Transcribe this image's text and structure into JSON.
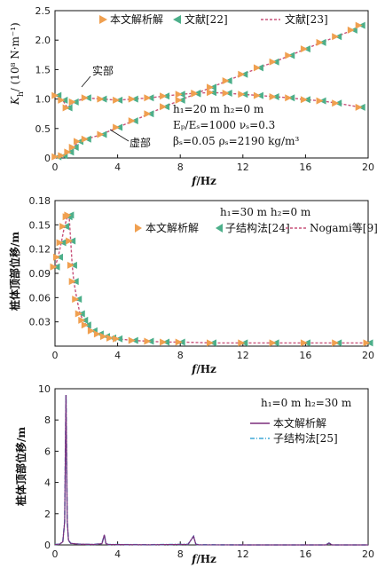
{
  "chart_data": [
    {
      "type": "line",
      "ylabel_symbol": "K",
      "ylabel_sub": "h",
      "ylabel_unit": "/ (10⁸ N·m⁻¹)",
      "xlabel_f": "f",
      "xlabel_unit": "/Hz",
      "xlim": [
        0,
        20
      ],
      "ylim": [
        0,
        2.5
      ],
      "xticks": [
        "0",
        "4",
        "8",
        "12",
        "16",
        "20"
      ],
      "yticks": [
        "0",
        "0.5",
        "1.0",
        "1.5",
        "2.0",
        "2.5"
      ],
      "legend": [
        "本文解析解",
        "文献[22]",
        "文献[23]"
      ],
      "annotations": {
        "real": "实部",
        "imag": "虚部",
        "h_params": "h₁=20 m   h₂=0 m",
        "mod_params": "Eₚ/Eₛ=1000   νₛ=0.3",
        "damp_params": "βₛ=0.05   ρₛ=2190 kg/m³"
      },
      "colors": {
        "analytical": "#f0a050",
        "ref22": "#4caf8a",
        "ref23": "#c9527a"
      },
      "series": [
        {
          "name": "实部",
          "x": [
            0.1,
            0.5,
            0.8,
            1.2,
            2.0,
            3.0,
            4.0,
            5.0,
            6.0,
            7.0,
            8.0,
            9.0,
            10.0,
            11.0,
            12.0,
            13.0,
            14.0,
            15.0,
            16.0,
            17.0,
            18.0,
            19.5
          ],
          "y": [
            1.06,
            0.98,
            0.85,
            0.95,
            1.02,
            1.0,
            0.98,
            1.0,
            1.02,
            1.05,
            1.08,
            1.1,
            1.11,
            1.1,
            1.08,
            1.06,
            1.04,
            1.02,
            0.99,
            0.97,
            0.93,
            0.86
          ]
        },
        {
          "name": "虚部",
          "x": [
            0.1,
            0.5,
            0.9,
            1.2,
            1.5,
            2.0,
            3.0,
            4.0,
            5.0,
            6.0,
            7.0,
            8.0,
            9.0,
            10.0,
            11.0,
            12.0,
            13.0,
            14.0,
            15.0,
            16.0,
            17.0,
            18.0,
            19.0,
            19.5
          ],
          "y": [
            0.02,
            0.04,
            0.1,
            0.18,
            0.28,
            0.32,
            0.4,
            0.52,
            0.63,
            0.75,
            0.87,
            0.98,
            1.09,
            1.2,
            1.31,
            1.42,
            1.53,
            1.63,
            1.74,
            1.85,
            1.96,
            2.06,
            2.17,
            2.25
          ]
        }
      ]
    },
    {
      "type": "line",
      "ylabel": "桩体顶部位移/m",
      "xlabel_f": "f",
      "xlabel_unit": "/Hz",
      "xlim": [
        0,
        20
      ],
      "ylim": [
        0,
        0.18
      ],
      "xticks": [
        "0",
        "4",
        "8",
        "12",
        "16",
        "20"
      ],
      "yticks": [
        "0.03",
        "0.06",
        "0.09",
        "0.12",
        "0.15",
        "0.18"
      ],
      "legend": [
        "本文解析解",
        "子结构法[24]",
        "Nogami等[9]"
      ],
      "annotations": {
        "h_params": "h₁=30 m   h₂=0 m"
      },
      "colors": {
        "analytical": "#f0a050",
        "substructure": "#4caf8a",
        "nogami": "#c9527a"
      },
      "series": [
        {
          "name": "本文解析解",
          "x": [
            0.0,
            0.2,
            0.4,
            0.6,
            0.8,
            0.9,
            1.0,
            1.1,
            1.2,
            1.4,
            1.6,
            1.8,
            2.0,
            2.4,
            2.8,
            3.2,
            3.6,
            4.0,
            5.0,
            6.0,
            7.0,
            8.0,
            10.0,
            12.0,
            14.0,
            16.0,
            18.0,
            20.0
          ],
          "y": [
            0.098,
            0.11,
            0.128,
            0.148,
            0.16,
            0.162,
            0.13,
            0.1,
            0.08,
            0.058,
            0.04,
            0.032,
            0.026,
            0.019,
            0.015,
            0.012,
            0.01,
            0.009,
            0.007,
            0.006,
            0.005,
            0.005,
            0.004,
            0.004,
            0.004,
            0.004,
            0.004,
            0.004
          ]
        }
      ]
    },
    {
      "type": "line",
      "ylabel": "桩体顶部位移/m",
      "xlabel_f": "f",
      "xlabel_unit": "/Hz",
      "xlim": [
        0,
        20
      ],
      "ylim": [
        0,
        10
      ],
      "xticks": [
        "0",
        "4",
        "8",
        "12",
        "16",
        "20"
      ],
      "yticks": [
        "0",
        "2",
        "4",
        "6",
        "8",
        "10"
      ],
      "legend": [
        "本文解析解",
        "子结构法[25]"
      ],
      "annotations": {
        "h_params": "h₁=0 m   h₂=30 m"
      },
      "colors": {
        "analytical": "#7b2d7b",
        "substructure": "#3fa7d6"
      },
      "series": [
        {
          "name": "本文解析解",
          "x": [
            0.0,
            0.3,
            0.5,
            0.62,
            0.7,
            0.78,
            0.86,
            1.0,
            1.5,
            2.5,
            3.0,
            3.15,
            3.25,
            3.4,
            4.0,
            6.0,
            8.5,
            8.85,
            9.0,
            9.2,
            12.0,
            15.0,
            17.3,
            17.5,
            17.7,
            20.0
          ],
          "y": [
            0.02,
            0.05,
            0.2,
            1.5,
            9.6,
            1.5,
            0.3,
            0.1,
            0.05,
            0.03,
            0.08,
            0.65,
            0.08,
            0.03,
            0.02,
            0.01,
            0.04,
            0.55,
            0.04,
            0.01,
            0.0,
            0.0,
            0.0,
            0.12,
            0.0,
            0.0
          ]
        }
      ]
    }
  ]
}
